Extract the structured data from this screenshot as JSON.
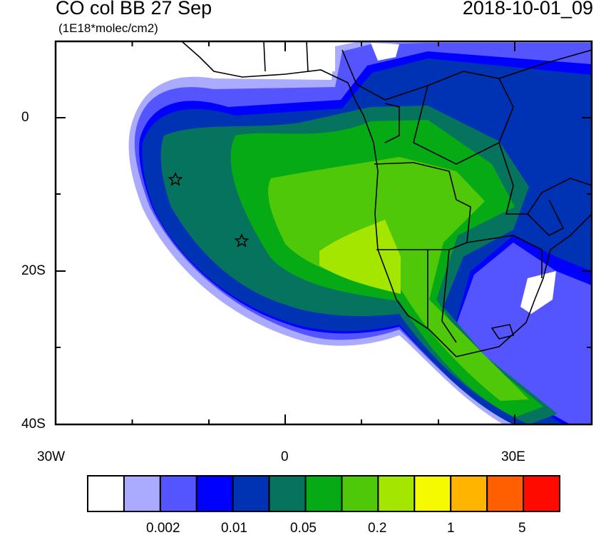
{
  "title": "CO col BB 27 Sep",
  "units": "(1E18*molec/cm2)",
  "timestamp": "2018-10-01_09",
  "axes": {
    "x_ticks": [
      "30W",
      "0",
      "30E"
    ],
    "y_ticks": [
      "0",
      "20S",
      "40S"
    ],
    "lon_range": [
      -30,
      40
    ],
    "lat_range": [
      -40,
      10
    ]
  },
  "colorbar": {
    "colors": [
      "#ffffff",
      "#aaaaff",
      "#5555ff",
      "#0000ff",
      "#0033b3",
      "#06735f",
      "#06aa14",
      "#50c80a",
      "#a5e600",
      "#f5fa00",
      "#ffb400",
      "#ff5f00",
      "#ff0a00"
    ],
    "labels": [
      "0.002",
      "0.01",
      "0.05",
      "0.2",
      "1",
      "5"
    ]
  },
  "markers": [
    {
      "type": "star",
      "lon": -14.4,
      "lat": -7.9
    },
    {
      "type": "star",
      "lon": -5.7,
      "lat": -15.9
    }
  ]
}
